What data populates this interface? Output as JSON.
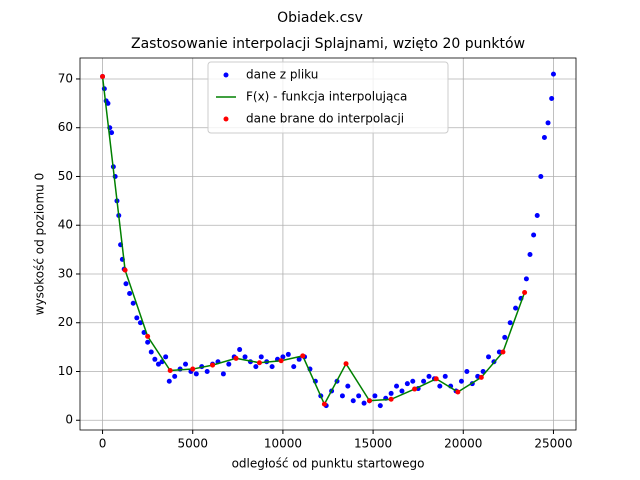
{
  "chart_data": {
    "type": "scatter",
    "title": "Obiadek.csv",
    "subtitle": "Zastosowanie interpolacji Splajnami, wzięto 20 punktów",
    "x_label": "odległość od punktu startowego",
    "y_label": "wysokość od poziomu 0",
    "xlim": [
      -1250,
      26250
    ],
    "ylim": [
      -2,
      74.3
    ],
    "xticks": [
      0,
      5000,
      10000,
      15000,
      20000,
      25000
    ],
    "yticks": [
      0,
      10,
      20,
      30,
      40,
      50,
      60,
      70
    ],
    "grid": true,
    "legend": "upper center",
    "series": [
      {
        "name": "dane z pliku",
        "color": "#0000ff",
        "style": "marker",
        "x": [
          0,
          100,
          200,
          300,
          400,
          500,
          600,
          700,
          800,
          900,
          1000,
          1100,
          1200,
          1300,
          1500,
          1700,
          1900,
          2100,
          2300,
          2500,
          2700,
          2900,
          3100,
          3300,
          3500,
          3700,
          4000,
          4300,
          4600,
          4900,
          5200,
          5500,
          5800,
          6100,
          6400,
          6700,
          7000,
          7300,
          7600,
          7900,
          8200,
          8500,
          8800,
          9100,
          9400,
          9700,
          10000,
          10300,
          10600,
          10900,
          11200,
          11500,
          11800,
          12100,
          12400,
          12700,
          13000,
          13300,
          13600,
          13900,
          14200,
          14500,
          14800,
          15100,
          15400,
          15700,
          16000,
          16300,
          16600,
          16900,
          17200,
          17500,
          17800,
          18100,
          18400,
          18700,
          19000,
          19300,
          19600,
          19900,
          20200,
          20500,
          20800,
          21100,
          21400,
          21700,
          22000,
          22300,
          22600,
          22900,
          23200,
          23500,
          23700,
          23900,
          24100,
          24300,
          24500,
          24700,
          24900,
          25000
        ],
        "values": [
          70.5,
          68,
          65.5,
          65,
          60,
          59,
          52,
          50,
          45,
          42,
          36,
          33,
          31,
          28,
          26,
          24,
          21,
          20,
          18,
          16,
          14,
          12.5,
          11.5,
          12,
          13,
          8,
          9,
          10.5,
          11.5,
          10,
          9.5,
          11,
          10,
          11.5,
          12,
          9.5,
          11.5,
          13,
          14.5,
          13,
          12,
          11,
          13,
          12,
          11,
          12.5,
          13,
          13.5,
          11,
          12.5,
          13,
          10.5,
          8,
          5,
          3,
          6,
          8,
          5,
          7,
          4,
          5,
          3.5,
          4,
          5,
          3,
          4.5,
          5.5,
          7,
          6,
          7.5,
          8,
          6.5,
          8,
          9,
          8.5,
          7,
          9,
          7,
          6,
          8,
          10,
          7.5,
          9,
          10,
          13,
          12,
          14,
          17,
          20,
          23,
          25,
          29,
          34,
          38,
          42,
          50,
          58,
          61,
          66,
          71
        ]
      },
      {
        "name": "F(x) - funkcja interpolująca",
        "color": "#008000",
        "style": "line",
        "x": [
          0,
          1250,
          2500,
          3750,
          5000,
          6100,
          7400,
          8700,
          9900,
          11100,
          12300,
          13500,
          14800,
          16000,
          17300,
          18500,
          19700,
          21000,
          22200,
          23400
        ],
        "values": [
          70.5,
          30.8,
          17.2,
          10.2,
          10.5,
          11.3,
          12.7,
          11.8,
          12.2,
          13.2,
          3.3,
          11.6,
          4.0,
          4.3,
          6.4,
          8.5,
          5.8,
          8.8,
          14.0,
          26.2
        ]
      },
      {
        "name": "dane brane do interpolacji",
        "color": "#ff0000",
        "style": "marker",
        "x": [
          0,
          1250,
          2500,
          3750,
          5000,
          6100,
          7400,
          8700,
          9900,
          11100,
          12300,
          13500,
          14800,
          16000,
          17300,
          18500,
          19700,
          21000,
          22200,
          23400
        ],
        "values": [
          70.5,
          30.8,
          17.2,
          10.2,
          10.5,
          11.3,
          12.7,
          11.8,
          12.2,
          13.2,
          3.3,
          11.6,
          4.0,
          4.3,
          6.4,
          8.5,
          5.8,
          8.8,
          14.0,
          26.2
        ]
      }
    ]
  }
}
